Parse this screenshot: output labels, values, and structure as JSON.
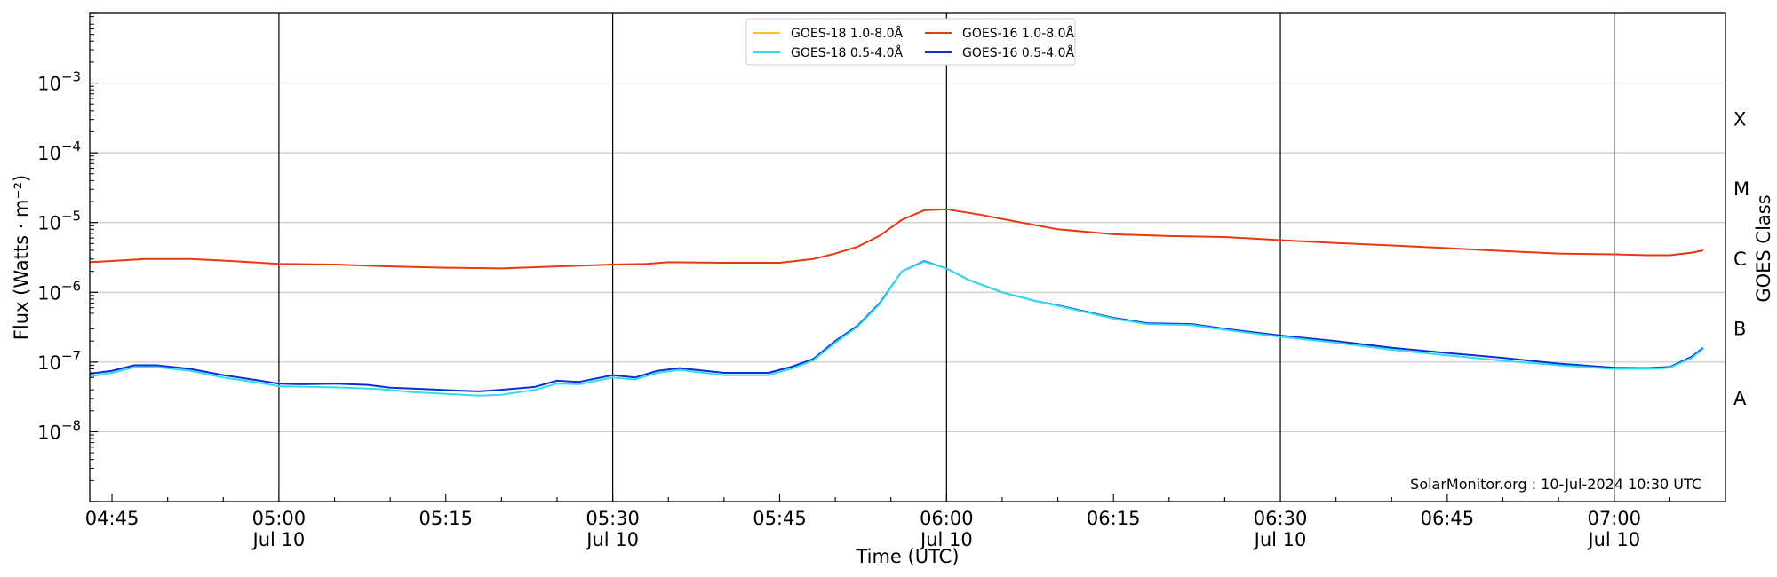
{
  "chart_data": {
    "type": "line",
    "xlabel": "Time (UTC)",
    "ylabel": "Flux (Watts · m⁻²)",
    "right_label": "GOES Class",
    "y_scale": "log",
    "ylim": [
      1e-09,
      0.01
    ],
    "x_range": [
      "04:43",
      "07:10"
    ],
    "grid": "horizontal at decades; vertical at 30-minute marks",
    "legend_position": "top-center",
    "credit": "SolarMonitor.org : 10-Jul-2024 10:30 UTC",
    "x_ticks": [
      {
        "t": "04:45",
        "label": "04:45",
        "date": ""
      },
      {
        "t": "05:00",
        "label": "05:00",
        "date": "Jul 10"
      },
      {
        "t": "05:15",
        "label": "05:15",
        "date": ""
      },
      {
        "t": "05:30",
        "label": "05:30",
        "date": "Jul 10"
      },
      {
        "t": "05:45",
        "label": "05:45",
        "date": ""
      },
      {
        "t": "06:00",
        "label": "06:00",
        "date": "Jul 10"
      },
      {
        "t": "06:15",
        "label": "06:15",
        "date": ""
      },
      {
        "t": "06:30",
        "label": "06:30",
        "date": "Jul 10"
      },
      {
        "t": "06:45",
        "label": "06:45",
        "date": ""
      },
      {
        "t": "07:00",
        "label": "07:00",
        "date": "Jul 10"
      }
    ],
    "y_ticks": [
      {
        "exp": -8,
        "label": "10",
        "sup": "−8"
      },
      {
        "exp": -7,
        "label": "10",
        "sup": "−7"
      },
      {
        "exp": -6,
        "label": "10",
        "sup": "−6"
      },
      {
        "exp": -5,
        "label": "10",
        "sup": "−5"
      },
      {
        "exp": -4,
        "label": "10",
        "sup": "−4"
      },
      {
        "exp": -3,
        "label": "10",
        "sup": "−3"
      }
    ],
    "classes": [
      {
        "label": "A",
        "flux": 3e-08
      },
      {
        "label": "B",
        "flux": 3e-07
      },
      {
        "label": "C",
        "flux": 3e-06
      },
      {
        "label": "M",
        "flux": 3e-05
      },
      {
        "label": "X",
        "flux": 0.0003
      }
    ],
    "vertical_lines": [
      "05:00",
      "05:30",
      "06:00",
      "06:30",
      "07:00"
    ],
    "series": [
      {
        "name": "GOES-16 1.0-8.0Å",
        "color": "#e8380d",
        "points": [
          [
            "04:43",
            2.7e-06
          ],
          [
            "04:48",
            3e-06
          ],
          [
            "04:52",
            3e-06
          ],
          [
            "04:56",
            2.8e-06
          ],
          [
            "05:00",
            2.55e-06
          ],
          [
            "05:05",
            2.5e-06
          ],
          [
            "05:10",
            2.35e-06
          ],
          [
            "05:15",
            2.25e-06
          ],
          [
            "05:20",
            2.2e-06
          ],
          [
            "05:25",
            2.35e-06
          ],
          [
            "05:30",
            2.5e-06
          ],
          [
            "05:33",
            2.55e-06
          ],
          [
            "05:35",
            2.7e-06
          ],
          [
            "05:40",
            2.65e-06
          ],
          [
            "05:45",
            2.65e-06
          ],
          [
            "05:48",
            3e-06
          ],
          [
            "05:50",
            3.6e-06
          ],
          [
            "05:52",
            4.5e-06
          ],
          [
            "05:54",
            6.5e-06
          ],
          [
            "05:56",
            1.1e-05
          ],
          [
            "05:58",
            1.5e-05
          ],
          [
            "06:00",
            1.55e-05
          ],
          [
            "06:03",
            1.3e-05
          ],
          [
            "06:06",
            1.05e-05
          ],
          [
            "06:10",
            8e-06
          ],
          [
            "06:15",
            6.8e-06
          ],
          [
            "06:20",
            6.4e-06
          ],
          [
            "06:25",
            6.2e-06
          ],
          [
            "06:30",
            5.6e-06
          ],
          [
            "06:35",
            5.1e-06
          ],
          [
            "06:40",
            4.7e-06
          ],
          [
            "06:45",
            4.3e-06
          ],
          [
            "06:50",
            3.9e-06
          ],
          [
            "06:55",
            3.6e-06
          ],
          [
            "07:00",
            3.5e-06
          ],
          [
            "07:03",
            3.4e-06
          ],
          [
            "07:05",
            3.4e-06
          ],
          [
            "07:07",
            3.7e-06
          ],
          [
            "07:08",
            4e-06
          ]
        ]
      },
      {
        "name": "GOES-16 0.5-4.0Å",
        "color": "#0a2fd8",
        "points": [
          [
            "04:43",
            6.8e-08
          ],
          [
            "04:45",
            7.5e-08
          ],
          [
            "04:47",
            9e-08
          ],
          [
            "04:49",
            9e-08
          ],
          [
            "04:52",
            8e-08
          ],
          [
            "04:55",
            6.5e-08
          ],
          [
            "04:58",
            5.5e-08
          ],
          [
            "05:00",
            4.9e-08
          ],
          [
            "05:02",
            4.8e-08
          ],
          [
            "05:05",
            4.9e-08
          ],
          [
            "05:08",
            4.7e-08
          ],
          [
            "05:10",
            4.3e-08
          ],
          [
            "05:13",
            4.1e-08
          ],
          [
            "05:16",
            3.9e-08
          ],
          [
            "05:18",
            3.8e-08
          ],
          [
            "05:20",
            4e-08
          ],
          [
            "05:23",
            4.4e-08
          ],
          [
            "05:25",
            5.4e-08
          ],
          [
            "05:27",
            5.2e-08
          ],
          [
            "05:30",
            6.5e-08
          ],
          [
            "05:32",
            6e-08
          ],
          [
            "05:34",
            7.5e-08
          ],
          [
            "05:36",
            8.2e-08
          ],
          [
            "05:40",
            7e-08
          ],
          [
            "05:44",
            7e-08
          ],
          [
            "05:46",
            8.5e-08
          ],
          [
            "05:48",
            1.1e-07
          ],
          [
            "05:50",
            2e-07
          ],
          [
            "05:52",
            3.3e-07
          ],
          [
            "05:54",
            7e-07
          ],
          [
            "05:56",
            2e-06
          ],
          [
            "05:58",
            2.8e-06
          ],
          [
            "06:00",
            2.2e-06
          ],
          [
            "06:02",
            1.5e-06
          ],
          [
            "06:05",
            1e-06
          ],
          [
            "06:08",
            7.5e-07
          ],
          [
            "06:10",
            6.5e-07
          ],
          [
            "06:15",
            4.3e-07
          ],
          [
            "06:18",
            3.6e-07
          ],
          [
            "06:22",
            3.5e-07
          ],
          [
            "06:25",
            3e-07
          ],
          [
            "06:30",
            2.4e-07
          ],
          [
            "06:35",
            2e-07
          ],
          [
            "06:40",
            1.6e-07
          ],
          [
            "06:45",
            1.35e-07
          ],
          [
            "06:50",
            1.15e-07
          ],
          [
            "06:55",
            9.5e-08
          ],
          [
            "07:00",
            8.3e-08
          ],
          [
            "07:03",
            8.2e-08
          ],
          [
            "07:05",
            8.5e-08
          ],
          [
            "07:07",
            1.2e-07
          ],
          [
            "07:08",
            1.6e-07
          ]
        ]
      },
      {
        "name": "GOES-18 0.5-4.0Å",
        "color": "#33dcec",
        "points": [
          [
            "04:43",
            6.2e-08
          ],
          [
            "04:45",
            7e-08
          ],
          [
            "04:47",
            8.4e-08
          ],
          [
            "04:49",
            8.5e-08
          ],
          [
            "04:52",
            7.5e-08
          ],
          [
            "04:55",
            6e-08
          ],
          [
            "04:58",
            5.1e-08
          ],
          [
            "05:00",
            4.5e-08
          ],
          [
            "05:03",
            4.4e-08
          ],
          [
            "05:06",
            4.3e-08
          ],
          [
            "05:09",
            4.1e-08
          ],
          [
            "05:12",
            3.7e-08
          ],
          [
            "05:15",
            3.5e-08
          ],
          [
            "05:18",
            3.3e-08
          ],
          [
            "05:20",
            3.4e-08
          ],
          [
            "05:23",
            4e-08
          ],
          [
            "05:25",
            4.9e-08
          ],
          [
            "05:27",
            4.8e-08
          ],
          [
            "05:30",
            6e-08
          ],
          [
            "05:32",
            5.6e-08
          ],
          [
            "05:34",
            7e-08
          ],
          [
            "05:36",
            7.7e-08
          ],
          [
            "05:40",
            6.5e-08
          ],
          [
            "05:44",
            6.5e-08
          ],
          [
            "05:46",
            8e-08
          ],
          [
            "05:48",
            1.05e-07
          ],
          [
            "05:50",
            1.9e-07
          ],
          [
            "05:52",
            3.2e-07
          ],
          [
            "05:54",
            6.8e-07
          ],
          [
            "05:56",
            2e-06
          ],
          [
            "05:58",
            2.75e-06
          ],
          [
            "06:00",
            2.2e-06
          ],
          [
            "06:02",
            1.5e-06
          ],
          [
            "06:05",
            1e-06
          ],
          [
            "06:08",
            7.5e-07
          ],
          [
            "06:10",
            6.4e-07
          ],
          [
            "06:15",
            4.2e-07
          ],
          [
            "06:18",
            3.5e-07
          ],
          [
            "06:22",
            3.4e-07
          ],
          [
            "06:25",
            2.9e-07
          ],
          [
            "06:30",
            2.3e-07
          ],
          [
            "06:35",
            1.9e-07
          ],
          [
            "06:40",
            1.5e-07
          ],
          [
            "06:45",
            1.25e-07
          ],
          [
            "06:50",
            1.05e-07
          ],
          [
            "06:55",
            9e-08
          ],
          [
            "07:00",
            8e-08
          ],
          [
            "07:03",
            8e-08
          ],
          [
            "07:05",
            8.3e-08
          ],
          [
            "07:07",
            1.15e-07
          ],
          [
            "07:08",
            1.55e-07
          ]
        ]
      },
      {
        "name": "GOES-18 1.0-8.0Å",
        "color": "#f5c518",
        "points": []
      }
    ],
    "legend_order": [
      3,
      2,
      0,
      1
    ]
  }
}
